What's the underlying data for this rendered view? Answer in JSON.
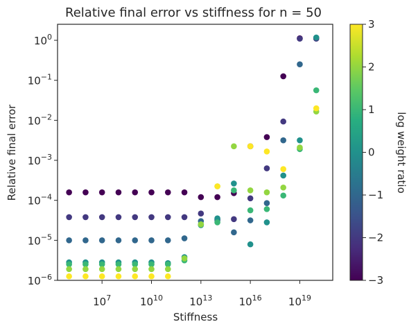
{
  "chart_data": {
    "type": "scatter",
    "title": "Relative final error vs stiffness for n = 50",
    "xlabel": "Stiffness",
    "ylabel": "Relative final error",
    "xscale": "log",
    "yscale": "log",
    "xlim_log10": [
      4.3,
      21.0
    ],
    "ylim_log10": [
      -6,
      0.4
    ],
    "x_ticks": [
      {
        "base": "10",
        "exp": "7",
        "log10": 7
      },
      {
        "base": "10",
        "exp": "10",
        "log10": 10
      },
      {
        "base": "10",
        "exp": "13",
        "log10": 13
      },
      {
        "base": "10",
        "exp": "16",
        "log10": 16
      },
      {
        "base": "10",
        "exp": "19",
        "log10": 19
      }
    ],
    "y_ticks": [
      {
        "base": "10",
        "exp": "−6",
        "log10": -6
      },
      {
        "base": "10",
        "exp": "−5",
        "log10": -5
      },
      {
        "base": "10",
        "exp": "−4",
        "log10": -4
      },
      {
        "base": "10",
        "exp": "−3",
        "log10": -3
      },
      {
        "base": "10",
        "exp": "−2",
        "log10": -2
      },
      {
        "base": "10",
        "exp": "−1",
        "log10": -1
      },
      {
        "base": "10",
        "exp": "0",
        "log10": 0
      }
    ],
    "colorbar": {
      "label": "log weight ratio",
      "range": [
        -3,
        3
      ],
      "ticks": [
        "−3",
        "−2",
        "−1",
        "0",
        "1",
        "2",
        "3"
      ],
      "colormap": "viridis"
    },
    "points": [
      {
        "x": 5,
        "y": -3.8,
        "c": -3
      },
      {
        "x": 6,
        "y": -3.8,
        "c": -3
      },
      {
        "x": 7,
        "y": -3.8,
        "c": -3
      },
      {
        "x": 8,
        "y": -3.8,
        "c": -3
      },
      {
        "x": 9,
        "y": -3.8,
        "c": -3
      },
      {
        "x": 10,
        "y": -3.8,
        "c": -3
      },
      {
        "x": 11,
        "y": -3.8,
        "c": -3
      },
      {
        "x": 12,
        "y": -3.8,
        "c": -3
      },
      {
        "x": 13,
        "y": -3.92,
        "c": -3
      },
      {
        "x": 14,
        "y": -3.92,
        "c": -3
      },
      {
        "x": 15,
        "y": -3.82,
        "c": -3
      },
      {
        "x": 16,
        "y": -2.65,
        "c": -3
      },
      {
        "x": 17,
        "y": -2.42,
        "c": -3
      },
      {
        "x": 18,
        "y": -0.9,
        "c": -3
      },
      {
        "x": 19,
        "y": 0.05,
        "c": -3
      },
      {
        "x": 20,
        "y": 0.06,
        "c": -3
      },
      {
        "x": 5,
        "y": -4.42,
        "c": -2
      },
      {
        "x": 6,
        "y": -4.42,
        "c": -2
      },
      {
        "x": 7,
        "y": -4.42,
        "c": -2
      },
      {
        "x": 8,
        "y": -4.42,
        "c": -2
      },
      {
        "x": 9,
        "y": -4.42,
        "c": -2
      },
      {
        "x": 10,
        "y": -4.42,
        "c": -2
      },
      {
        "x": 11,
        "y": -4.42,
        "c": -2
      },
      {
        "x": 12,
        "y": -4.42,
        "c": -2
      },
      {
        "x": 13,
        "y": -4.33,
        "c": -2
      },
      {
        "x": 14,
        "y": -4.48,
        "c": -2
      },
      {
        "x": 15,
        "y": -4.47,
        "c": -2
      },
      {
        "x": 16,
        "y": -3.95,
        "c": -2
      },
      {
        "x": 17,
        "y": -3.2,
        "c": -2
      },
      {
        "x": 18,
        "y": -2.03,
        "c": -2
      },
      {
        "x": 19,
        "y": 0.04,
        "c": -2
      },
      {
        "x": 20,
        "y": 0.04,
        "c": -2
      },
      {
        "x": 5,
        "y": -5.0,
        "c": -1
      },
      {
        "x": 6,
        "y": -5.0,
        "c": -1
      },
      {
        "x": 7,
        "y": -5.0,
        "c": -1
      },
      {
        "x": 8,
        "y": -5.0,
        "c": -1
      },
      {
        "x": 9,
        "y": -5.0,
        "c": -1
      },
      {
        "x": 10,
        "y": -5.0,
        "c": -1
      },
      {
        "x": 11,
        "y": -5.0,
        "c": -1
      },
      {
        "x": 12,
        "y": -4.95,
        "c": -1
      },
      {
        "x": 13,
        "y": -4.52,
        "c": -1
      },
      {
        "x": 14,
        "y": -4.5,
        "c": -1
      },
      {
        "x": 15,
        "y": -4.8,
        "c": -1
      },
      {
        "x": 16,
        "y": -4.5,
        "c": -1
      },
      {
        "x": 17,
        "y": -4.07,
        "c": -1
      },
      {
        "x": 18,
        "y": -2.5,
        "c": -1
      },
      {
        "x": 19,
        "y": -0.6,
        "c": -1
      },
      {
        "x": 5,
        "y": -5.55,
        "c": 0
      },
      {
        "x": 6,
        "y": -5.55,
        "c": 0
      },
      {
        "x": 7,
        "y": -5.55,
        "c": 0
      },
      {
        "x": 8,
        "y": -5.55,
        "c": 0
      },
      {
        "x": 9,
        "y": -5.55,
        "c": 0
      },
      {
        "x": 10,
        "y": -5.55,
        "c": 0
      },
      {
        "x": 11,
        "y": -5.57,
        "c": 0
      },
      {
        "x": 12,
        "y": -5.42,
        "c": 0
      },
      {
        "x": 13,
        "y": -4.62,
        "c": 0
      },
      {
        "x": 14,
        "y": -4.45,
        "c": 0
      },
      {
        "x": 15,
        "y": -3.58,
        "c": 0
      },
      {
        "x": 16,
        "y": -5.1,
        "c": 0
      },
      {
        "x": 17,
        "y": -4.55,
        "c": 0
      },
      {
        "x": 18,
        "y": -3.38,
        "c": 0
      },
      {
        "x": 19,
        "y": -2.5,
        "c": 0
      },
      {
        "x": 20,
        "y": 0.07,
        "c": 0
      },
      {
        "x": 5,
        "y": -5.6,
        "c": 1
      },
      {
        "x": 6,
        "y": -5.6,
        "c": 1
      },
      {
        "x": 7,
        "y": -5.6,
        "c": 1
      },
      {
        "x": 8,
        "y": -5.6,
        "c": 1
      },
      {
        "x": 9,
        "y": -5.6,
        "c": 1
      },
      {
        "x": 10,
        "y": -5.6,
        "c": 1
      },
      {
        "x": 11,
        "y": -5.6,
        "c": 1
      },
      {
        "x": 12,
        "y": -5.5,
        "c": 1
      },
      {
        "x": 13,
        "y": -4.6,
        "c": 1
      },
      {
        "x": 14,
        "y": -4.55,
        "c": 1
      },
      {
        "x": 15,
        "y": -3.75,
        "c": 1
      },
      {
        "x": 16,
        "y": -4.25,
        "c": 1
      },
      {
        "x": 17,
        "y": -4.22,
        "c": 1
      },
      {
        "x": 18,
        "y": -3.88,
        "c": 1
      },
      {
        "x": 19,
        "y": -2.72,
        "c": 1
      },
      {
        "x": 20,
        "y": -1.25,
        "c": 1
      },
      {
        "x": 5,
        "y": -5.72,
        "c": 2
      },
      {
        "x": 6,
        "y": -5.72,
        "c": 2
      },
      {
        "x": 7,
        "y": -5.72,
        "c": 2
      },
      {
        "x": 8,
        "y": -5.72,
        "c": 2
      },
      {
        "x": 9,
        "y": -5.72,
        "c": 2
      },
      {
        "x": 10,
        "y": -5.72,
        "c": 2
      },
      {
        "x": 11,
        "y": -5.72,
        "c": 2
      },
      {
        "x": 12,
        "y": -5.45,
        "c": 2
      },
      {
        "x": 13,
        "y": -4.6,
        "c": 2
      },
      {
        "x": 14,
        "y": -3.65,
        "c": 2
      },
      {
        "x": 15,
        "y": -2.65,
        "c": 2
      },
      {
        "x": 16,
        "y": -3.75,
        "c": 2
      },
      {
        "x": 17,
        "y": -3.8,
        "c": 2
      },
      {
        "x": 18,
        "y": -3.68,
        "c": 2
      },
      {
        "x": 19,
        "y": -2.68,
        "c": 2
      },
      {
        "x": 20,
        "y": -1.78,
        "c": 2
      },
      {
        "x": 5,
        "y": -5.9,
        "c": 3
      },
      {
        "x": 6,
        "y": -5.9,
        "c": 3
      },
      {
        "x": 7,
        "y": -5.9,
        "c": 3
      },
      {
        "x": 8,
        "y": -5.9,
        "c": 3
      },
      {
        "x": 9,
        "y": -5.9,
        "c": 3
      },
      {
        "x": 10,
        "y": -5.9,
        "c": 3
      },
      {
        "x": 11,
        "y": -5.9,
        "c": 3
      },
      {
        "x": 14,
        "y": -3.65,
        "c": 3
      },
      {
        "x": 16,
        "y": -2.65,
        "c": 3
      },
      {
        "x": 17,
        "y": -2.78,
        "c": 3
      },
      {
        "x": 18,
        "y": -3.22,
        "c": 3
      },
      {
        "x": 20,
        "y": -1.7,
        "c": 3
      }
    ]
  }
}
